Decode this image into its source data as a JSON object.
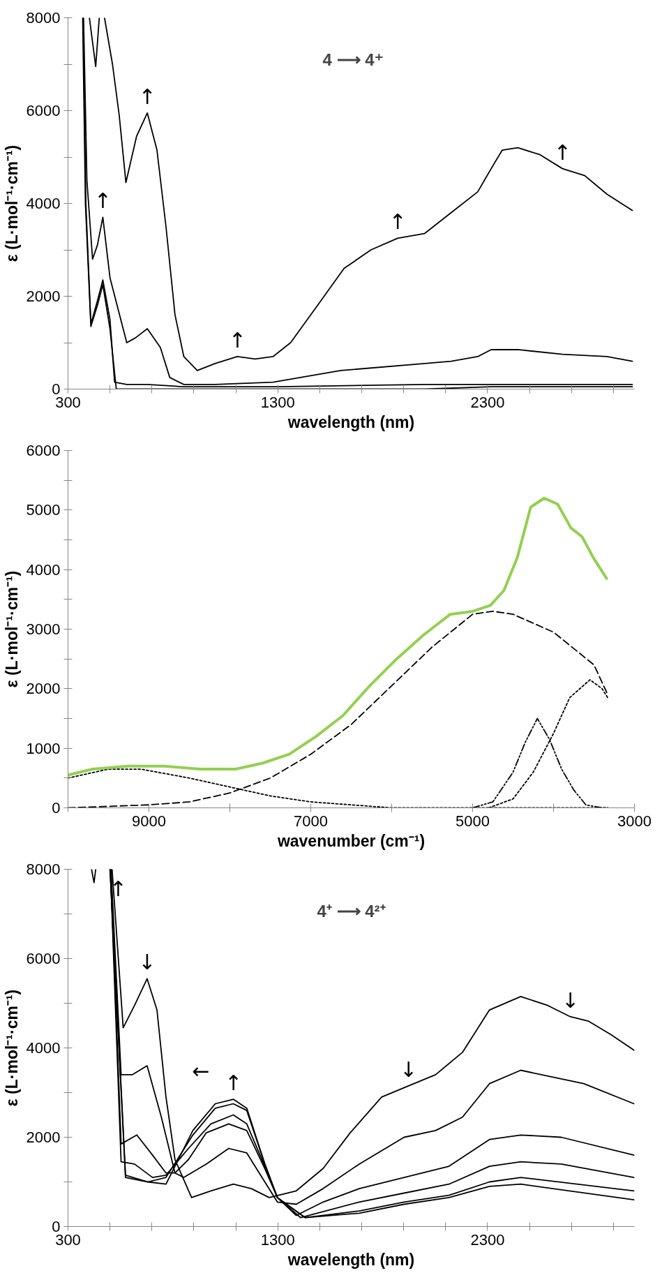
{
  "chart_data": [
    {
      "type": "line",
      "xlabel": "wavelength (nm)",
      "ylabel": "ε (L·mol⁻¹·cm⁻¹)",
      "xlim": [
        300,
        3000
      ],
      "ylim": [
        0,
        8000
      ],
      "xticks": [
        300,
        {
          "value": 500,
          "label": null
        },
        {
          "value": 700,
          "label": null
        },
        {
          "value": 900,
          "label": null
        },
        {
          "value": 1100,
          "label": null
        },
        1300,
        {
          "value": 1500,
          "label": null
        },
        {
          "value": 1700,
          "label": null
        },
        {
          "value": 1900,
          "label": null
        },
        {
          "value": 2100,
          "label": null
        },
        2300,
        {
          "value": 2500,
          "label": null
        },
        {
          "value": 2700,
          "label": null
        },
        {
          "value": 2900,
          "label": null
        }
      ],
      "yticks": [
        0,
        {
          "value": 1000,
          "label": null
        },
        2000,
        {
          "value": 3000,
          "label": null
        },
        4000,
        {
          "value": 5000,
          "label": null
        },
        6000,
        {
          "value": 7000,
          "label": null
        },
        8000
      ],
      "grid": false,
      "series": [
        {
          "color": "#000000",
          "line_style": "solid",
          "x": [
            402,
            432,
            449,
            460,
            474,
            512,
            544,
            576,
            627,
            678,
            724,
            767,
            810,
            852,
            916,
            1001,
            1107,
            1192,
            1277,
            1361,
            1489,
            1616,
            1744,
            1871,
            1999,
            2126,
            2253,
            2317,
            2370,
            2444,
            2550,
            2657,
            2763,
            2869,
            2990
          ],
          "values": [
            8000,
            6950,
            8000,
            null,
            8000,
            7000,
            5900,
            4450,
            5450,
            5950,
            5150,
            3500,
            1600,
            700,
            400,
            550,
            700,
            650,
            700,
            1000,
            1800,
            2600,
            3000,
            3250,
            3350,
            3800,
            4250,
            4750,
            5150,
            5200,
            5050,
            4750,
            4600,
            4200,
            3850
          ]
        },
        {
          "color": "#000000",
          "line_style": "solid",
          "x": [
            374,
            390,
            417,
            440,
            466,
            500,
            580,
            620,
            678,
            740,
            785,
            852,
            1000,
            1277,
            1600,
            1999,
            2126,
            2253,
            2317,
            2444,
            2657,
            2869,
            2990
          ],
          "values": [
            8000,
            4500,
            2800,
            3100,
            3700,
            2400,
            1000,
            1100,
            1300,
            900,
            250,
            100,
            100,
            150,
            400,
            550,
            600,
            700,
            850,
            850,
            750,
            700,
            600
          ]
        },
        {
          "color": "#000000",
          "line_style": "solid",
          "x": [
            372,
            385,
            409,
            440,
            466,
            500,
            522,
            580,
            680,
            852,
            1300,
            2000,
            2317,
            2600,
            2990
          ],
          "values": [
            8000,
            4000,
            1400,
            1900,
            2350,
            1500,
            150,
            100,
            100,
            50,
            50,
            100,
            100,
            100,
            100
          ]
        },
        {
          "color": "#000000",
          "line_style": "solid",
          "x": [
            370,
            383,
            409,
            440,
            466,
            500,
            530,
            600,
            852,
            1300,
            2000,
            2317,
            2990
          ],
          "values": [
            8000,
            4000,
            1350,
            1800,
            2250,
            1300,
            0,
            0,
            0,
            0,
            0,
            50,
            50
          ]
        }
      ],
      "annotations": [
        "4 ⟶ 4⁺",
        {
          "text": "↑",
          "x": 466,
          "y": 3700
        },
        {
          "text": "↑",
          "x": 678,
          "y": 5950
        },
        {
          "text": "↑",
          "x": 1107,
          "y": 700
        },
        {
          "text": "↑",
          "x": 1871,
          "y": 3250
        },
        {
          "text": "↑",
          "x": 2657,
          "y": 4750
        }
      ]
    },
    {
      "type": "line",
      "xlabel": "wavenumber (cm⁻¹)",
      "ylabel": "ε (L·mol⁻¹·cm⁻¹)",
      "xlim": [
        10000,
        3000
      ],
      "ylim": [
        0,
        6000
      ],
      "xticks": [
        {
          "value": 10000,
          "label": null
        },
        9000,
        {
          "value": 8000,
          "label": null
        },
        7000,
        {
          "value": 6000,
          "label": null
        },
        5000,
        {
          "value": 4000,
          "label": null
        },
        3000
      ],
      "yticks": [
        0,
        {
          "value": 500,
          "label": null
        },
        1000,
        {
          "value": 1500,
          "label": null
        },
        2000,
        {
          "value": 2500,
          "label": null
        },
        3000,
        {
          "value": 3500,
          "label": null
        },
        4000,
        {
          "value": 4500,
          "label": null
        },
        5000,
        {
          "value": 5500,
          "label": null
        },
        6000
      ],
      "grid": false,
      "series": [
        {
          "color": "#000000",
          "line_style": "dashed",
          "x": [
            10000,
            9000,
            8500,
            8000,
            7500,
            7000,
            6500,
            6000,
            5500,
            5000,
            4750,
            4500,
            4000,
            3500,
            3330
          ],
          "values": [
            0,
            50,
            100,
            250,
            500,
            900,
            1400,
            2050,
            2700,
            3250,
            3300,
            3250,
            2950,
            2400,
            1900
          ]
        },
        {
          "color": "#000000",
          "line_style": "dotted",
          "x": [
            10000,
            9500,
            9100,
            8500,
            8000,
            7500,
            7000,
            6500,
            6000,
            5000,
            3330
          ],
          "values": [
            500,
            650,
            650,
            500,
            350,
            200,
            100,
            50,
            0,
            0,
            0
          ]
        },
        {
          "color": "#000000",
          "line_style": "dashdot",
          "x": [
            5000,
            4750,
            4500,
            4350,
            4200,
            4050,
            3900,
            3750,
            3600,
            3400,
            3330
          ],
          "values": [
            0,
            100,
            600,
            1100,
            1500,
            1150,
            650,
            300,
            50,
            0,
            0
          ]
        },
        {
          "color": "#000000",
          "line_style": "dotted",
          "x": [
            4800,
            4500,
            4250,
            4000,
            3800,
            3550,
            3400,
            3330
          ],
          "values": [
            0,
            150,
            600,
            1250,
            1850,
            2150,
            2000,
            1850
          ]
        },
        {
          "color": "#92d050",
          "line_style": "solid",
          "x": [
            10000,
            9696,
            9254,
            8812,
            8370,
            7928,
            7597,
            7265,
            6934,
            6602,
            6271,
            5939,
            5608,
            5276,
            5000,
            4779,
            4613,
            4448,
            4282,
            4116,
            3950,
            3785,
            3646,
            3508,
            3343
          ],
          "values": [
            550,
            650,
            700,
            700,
            650,
            650,
            750,
            900,
            1200,
            1550,
            2050,
            2500,
            2900,
            3250,
            3300,
            3400,
            3650,
            4200,
            5050,
            5200,
            5100,
            4700,
            4550,
            4200,
            3850
          ]
        }
      ]
    },
    {
      "type": "line",
      "xlabel": "wavelength (nm)",
      "ylabel": "ε (L·mol⁻¹·cm⁻¹)",
      "xlim": [
        300,
        3000
      ],
      "ylim": [
        0,
        8000
      ],
      "xticks": [
        300,
        {
          "value": 500,
          "label": null
        },
        {
          "value": 700,
          "label": null
        },
        {
          "value": 900,
          "label": null
        },
        {
          "value": 1100,
          "label": null
        },
        1300,
        {
          "value": 1500,
          "label": null
        },
        {
          "value": 1700,
          "label": null
        },
        {
          "value": 1900,
          "label": null
        },
        {
          "value": 2100,
          "label": null
        },
        2300,
        {
          "value": 2500,
          "label": null
        },
        {
          "value": 2700,
          "label": null
        },
        {
          "value": 2900,
          "label": null
        }
      ],
      "yticks": [
        0,
        {
          "value": 1000,
          "label": null
        },
        2000,
        {
          "value": 3000,
          "label": null
        },
        4000,
        {
          "value": 5000,
          "label": null
        },
        6000,
        {
          "value": 7000,
          "label": null
        },
        8000
      ],
      "grid": false,
      "series": [
        {
          "color": "#000000",
          "line_style": "solid",
          "x": [
            412,
            424,
            432,
            null,
            510,
            563,
            617,
            677,
            724,
            767,
            810,
            889,
            981,
            1088,
            1174,
            1259,
            1388,
            1516,
            1645,
            1795,
            1923,
            2052,
            2180,
            2309,
            2458,
            2587,
            2694,
            2780,
            2887,
            2998
          ],
          "values": [
            8000,
            7700,
            8000,
            null,
            8000,
            4450,
            4950,
            5550,
            4850,
            2900,
            1500,
            650,
            800,
            950,
            850,
            650,
            800,
            1300,
            2100,
            2900,
            3150,
            3400,
            3900,
            4850,
            5150,
            4950,
            4700,
            4600,
            4300,
            3950
          ]
        },
        {
          "color": "#000000",
          "line_style": "solid",
          "x": [
            505,
            553,
            606,
            677,
            745,
            810,
            852,
            959,
            1066,
            1152,
            1238,
            1298,
            1388,
            1516,
            1688,
            1902,
            2052,
            2180,
            2309,
            2458,
            2608,
            2758,
            2998
          ],
          "values": [
            8000,
            3400,
            3400,
            3600,
            2450,
            1200,
            1100,
            1400,
            1750,
            1650,
            1000,
            550,
            500,
            850,
            1400,
            2000,
            2150,
            2450,
            3200,
            3500,
            3350,
            3200,
            2750
          ]
        },
        {
          "color": "#000000",
          "line_style": "solid",
          "x": [
            503,
            553,
            628,
            703,
            767,
            810,
            874,
            959,
            1066,
            1152,
            1238,
            1298,
            1388,
            1516,
            1688,
            1902,
            2116,
            2309,
            2458,
            2651,
            2998
          ],
          "values": [
            8000,
            1850,
            2050,
            1600,
            1200,
            1200,
            1500,
            2100,
            2300,
            2150,
            1300,
            650,
            250,
            550,
            850,
            1100,
            1350,
            1950,
            2050,
            2000,
            1600
          ]
        },
        {
          "color": "#000000",
          "line_style": "solid",
          "x": [
            502,
            553,
            617,
            703,
            767,
            874,
            981,
            1088,
            1152,
            1238,
            1298,
            1409,
            1688,
            1902,
            2116,
            2309,
            2458,
            2651,
            2998
          ],
          "values": [
            8000,
            1450,
            1400,
            1100,
            1150,
            1750,
            2300,
            2500,
            2300,
            1350,
            650,
            200,
            550,
            750,
            950,
            1350,
            1450,
            1400,
            1100
          ]
        },
        {
          "color": "#000000",
          "line_style": "solid",
          "x": [
            501,
            574,
            681,
            767,
            895,
            1002,
            1088,
            1152,
            1238,
            1298,
            1431,
            1688,
            1902,
            2116,
            2309,
            2458,
            2998
          ],
          "values": [
            8000,
            1150,
            1000,
            1100,
            2050,
            2650,
            2750,
            2600,
            1400,
            650,
            200,
            350,
            550,
            700,
            1000,
            1100,
            800
          ]
        },
        {
          "color": "#000000",
          "line_style": "solid",
          "x": [
            500,
            574,
            681,
            767,
            895,
            1002,
            1088,
            1152,
            1238,
            1298,
            1431,
            1688,
            1902,
            2116,
            2309,
            2458,
            2998
          ],
          "values": [
            8000,
            1100,
            1000,
            950,
            2150,
            2750,
            2850,
            2650,
            1400,
            650,
            200,
            300,
            500,
            650,
            900,
            950,
            600
          ]
        }
      ],
      "annotations": [
        "4⁺ ⟶ 4²⁺",
        {
          "text": "↑",
          "x": 432,
          "y": 8000
        },
        {
          "text": "↓",
          "x": 677,
          "y": 5550
        },
        {
          "text": "←",
          "x": 1002,
          "y": 2750
        },
        {
          "text": "↑",
          "x": 1088,
          "y": 2850
        },
        {
          "text": "↓",
          "x": 1923,
          "y": 3150
        },
        {
          "text": "↓",
          "x": 2694,
          "y": 4700
        }
      ]
    }
  ]
}
